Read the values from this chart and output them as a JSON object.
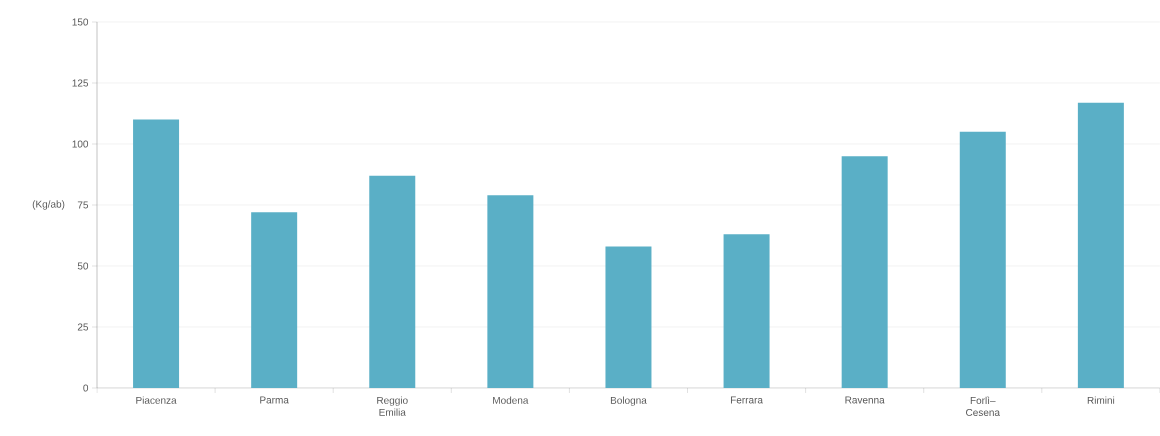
{
  "chart_data": {
    "type": "bar",
    "ylabel": "(Kg/ab)",
    "categories": [
      "Piacenza",
      "Parma",
      "Reggio Emilia",
      "Modena",
      "Bologna",
      "Ferrara",
      "Ravenna",
      "Forlì–Cesena",
      "Rimini"
    ],
    "values": [
      110,
      72,
      87,
      79,
      58,
      63,
      95,
      105,
      117
    ],
    "color": "#5aafc6",
    "ylim": [
      0,
      150
    ],
    "yticks": [
      0,
      25,
      50,
      75,
      100,
      125,
      150
    ],
    "grid": "y"
  }
}
